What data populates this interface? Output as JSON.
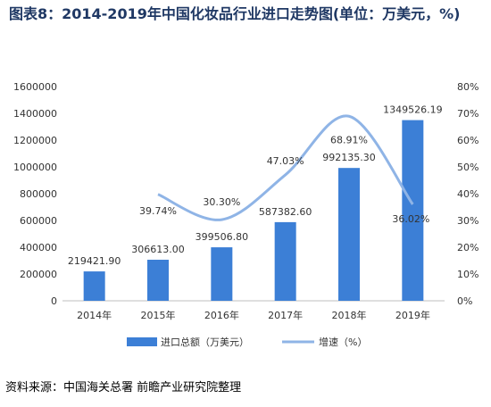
{
  "title": "图表8：2014-2019年中国化妆品行业进口走势图(单位：万美元，%)",
  "source": "资料来源：中国海关总署 前瞻产业研究院整理",
  "colors": {
    "bar": "#3c7fd6",
    "line": "#8fb4e6"
  },
  "chart_data": {
    "type": "bar",
    "categories": [
      "2014年",
      "2015年",
      "2016年",
      "2017年",
      "2018年",
      "2019年"
    ],
    "series": [
      {
        "name": "进口总额（万美元）",
        "type": "bar",
        "axis": "left",
        "values": [
          219421.9,
          306613.0,
          399506.8,
          587382.6,
          992135.3,
          1349526.19
        ],
        "labels": [
          "219421.90",
          "306613.00",
          "399506.80",
          "587382.60",
          "992135.30",
          "1349526.19"
        ]
      },
      {
        "name": "增速（%）",
        "type": "line",
        "axis": "right",
        "values": [
          null,
          39.74,
          30.3,
          47.03,
          68.91,
          36.02
        ],
        "labels": [
          "",
          "39.74%",
          "30.30%",
          "47.03%",
          "68.91%",
          "36.02%"
        ]
      }
    ],
    "ylim_left": [
      0,
      1600000
    ],
    "yticks_left": [
      "0",
      "200000",
      "400000",
      "600000",
      "800000",
      "1000000",
      "1200000",
      "1400000",
      "1600000"
    ],
    "ylim_right": [
      0,
      80
    ],
    "yticks_right": [
      "0%",
      "10%",
      "20%",
      "30%",
      "40%",
      "50%",
      "60%",
      "70%",
      "80%"
    ],
    "grid": false,
    "legend": "bottom"
  }
}
